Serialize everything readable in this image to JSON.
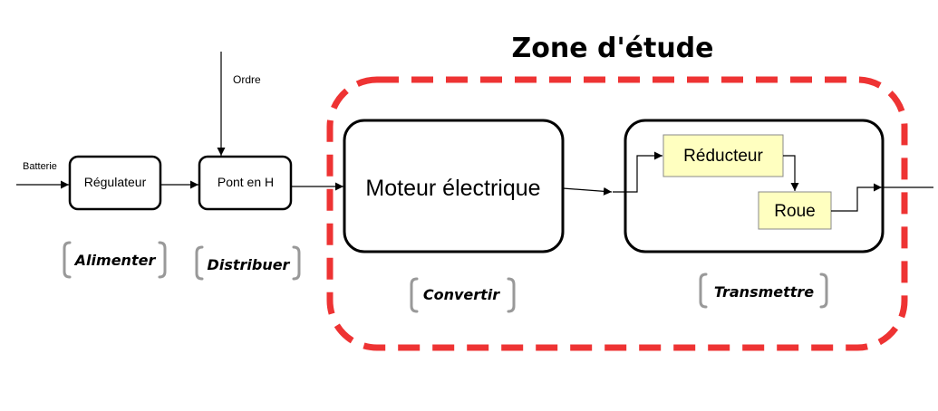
{
  "title": "Zone d'étude",
  "inputs": {
    "battery": "Batterie",
    "order": "Ordre"
  },
  "blocks": {
    "regulator": "Régulateur",
    "h_bridge": "Pont en H",
    "motor": "Moteur électrique",
    "reducer": "Réducteur",
    "wheel": "Roue"
  },
  "functions": {
    "supply": "Alimenter",
    "distribute": "Distribuer",
    "convert": "Convertir",
    "transmit": "Transmettre"
  },
  "colors": {
    "zone_border": "#ee3333",
    "sub_block_fill": "#ffffc0",
    "bracket": "#999999"
  }
}
